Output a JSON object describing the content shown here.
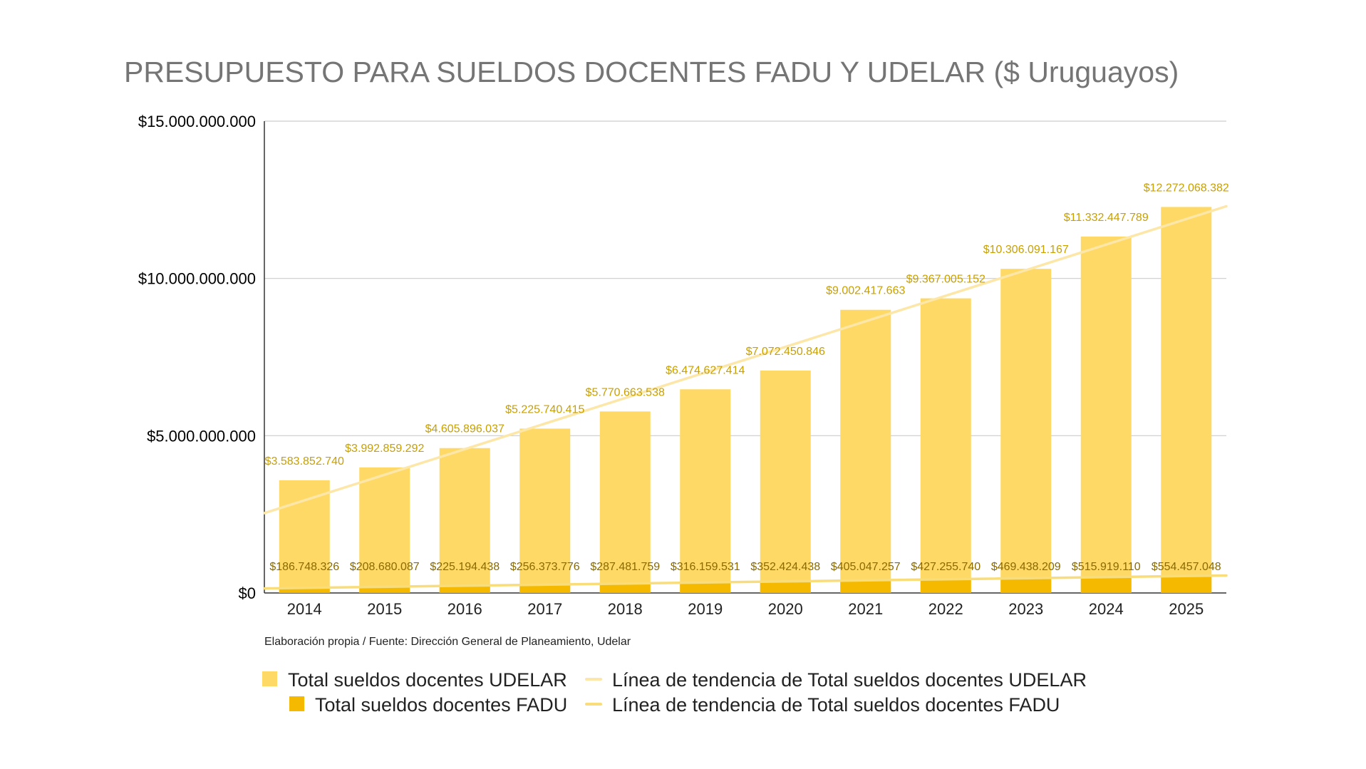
{
  "colors": {
    "udelar": "#FFD966",
    "fadu": "#F5BA00",
    "udelar_trend": "#FCE7A8",
    "fadu_trend": "#F8DD7A",
    "grid": "#CCCCCC",
    "title": "#757575",
    "data_label_udelar": "#C8A000",
    "data_label_fadu": "#8A6A00"
  },
  "chart_data": {
    "type": "bar",
    "title": "PRESUPUESTO PARA SUELDOS DOCENTES FADU Y UDELAR ($ Uruguayos)",
    "xlabel": "",
    "ylabel": "",
    "ylim": [
      0,
      15000000000
    ],
    "yticks": [
      0,
      5000000000,
      10000000000,
      15000000000
    ],
    "ytick_labels": [
      "$0",
      "$5.000.000.000",
      "$10.000.000.000",
      "$15.000.000.000"
    ],
    "grid": true,
    "categories": [
      "2014",
      "2015",
      "2016",
      "2017",
      "2018",
      "2019",
      "2020",
      "2021",
      "2022",
      "2023",
      "2024",
      "2025"
    ],
    "series": [
      {
        "name": "Total sueldos docentes UDELAR",
        "color_key": "udelar",
        "values": [
          3583852740,
          3992859292,
          4605896037,
          5225740415,
          5770663538,
          6474627414,
          7072450846,
          9002417663,
          9367005152,
          10306091167,
          11332447789,
          12272068382
        ],
        "labels": [
          "$3.583.852.740",
          "$3.992.859.292",
          "$4.605.896.037",
          "$5.225.740.415",
          "$5.770.663.538",
          "$6.474.627.414",
          "$7.072.450.846",
          "$9.002.417.663",
          "$9.367.005.152",
          "$10.306.091.167",
          "$11.332.447.789",
          "$12.272.068.382"
        ]
      },
      {
        "name": "Total sueldos docentes FADU",
        "color_key": "fadu",
        "values": [
          186748326,
          208680087,
          225194438,
          256373776,
          287481759,
          316159531,
          352424438,
          405047257,
          427255740,
          469438209,
          515919110,
          554457048
        ],
        "labels": [
          "$186.748.326",
          "$208.680.087",
          "$225.194.438",
          "$256.373.776",
          "$287.481.759",
          "$316.159.531",
          "$352.424.438",
          "$405.047.257",
          "$427.255.740",
          "$469.438.209",
          "$515.919.110",
          "$554.457.048"
        ]
      }
    ],
    "trendlines": [
      {
        "name": "Línea de tendencia de Total sueldos docentes UDELAR",
        "series": "Total sueldos docentes UDELAR",
        "color_key": "udelar_trend"
      },
      {
        "name": "Línea de tendencia de Total sueldos docentes FADU",
        "series": "Total sueldos docentes FADU",
        "color_key": "fadu_trend"
      }
    ],
    "source_note": "Elaboración propia / Fuente: Dirección General de Planeamiento, Udelar",
    "legend_position": "bottom"
  }
}
